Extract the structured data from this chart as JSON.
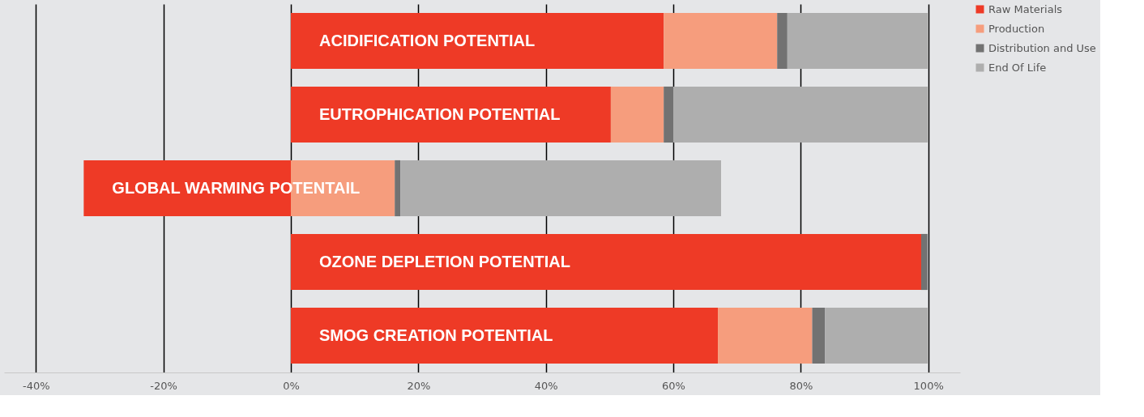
{
  "chart_data": {
    "type": "bar",
    "orientation": "horizontal",
    "stacked": true,
    "categories": [
      "ACIDIFICATION POTENTIAL",
      "EUTROPHICATION POTENTIAL",
      "GLOBAL WARMING POTENTAIL",
      "OZONE DEPLETION POTENTIAL",
      "SMOG CREATION POTENTIAL"
    ],
    "series": [
      {
        "name": "Raw Materials",
        "color": "#ee3a26",
        "values": [
          58.5,
          50.2,
          -32.5,
          98.9,
          67.0
        ]
      },
      {
        "name": "Production",
        "color": "#f69d7d",
        "values": [
          17.8,
          8.3,
          16.3,
          0,
          14.8
        ]
      },
      {
        "name": "Distribution and Use",
        "color": "#727272",
        "values": [
          1.6,
          1.5,
          0.9,
          1.0,
          2.0
        ]
      },
      {
        "name": "End Of Life",
        "color": "#aeaeae",
        "values": [
          22.1,
          40.0,
          50.3,
          0.1,
          16.2
        ]
      }
    ],
    "xlim": [
      -45,
      105
    ],
    "xticks": [
      {
        "value": -40,
        "label": "-40%"
      },
      {
        "value": -20,
        "label": "-20%"
      },
      {
        "value": 0,
        "label": "0%"
      },
      {
        "value": 20,
        "label": "20%"
      },
      {
        "value": 40,
        "label": "40%"
      },
      {
        "value": 60,
        "label": "60%"
      },
      {
        "value": 80,
        "label": "80%"
      },
      {
        "value": 100,
        "label": "100%"
      }
    ],
    "grid": "x",
    "legend": "right",
    "tick_labels": "x"
  }
}
